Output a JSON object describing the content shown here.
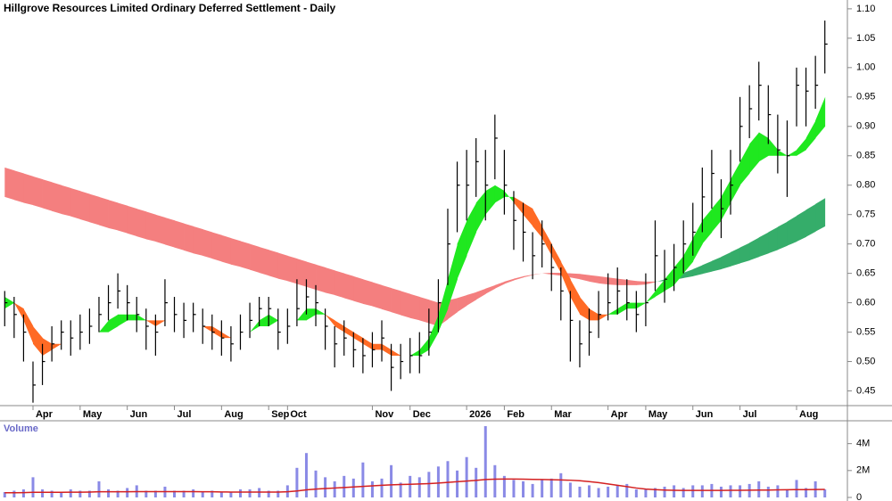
{
  "chart_data": [
    {
      "type": "ohlc",
      "title": "Hillgrove Resources Limited Ordinary Deferred Settlement - Daily",
      "categories": [
        null,
        null,
        null,
        "Apr",
        null,
        null,
        null,
        null,
        "May",
        null,
        null,
        null,
        null,
        "Jun",
        null,
        null,
        null,
        null,
        "Jul",
        null,
        null,
        null,
        null,
        "Aug",
        null,
        null,
        null,
        null,
        "Sep",
        null,
        "Oct",
        null,
        null,
        null,
        null,
        null,
        null,
        null,
        null,
        "Nov",
        null,
        null,
        null,
        "Dec",
        null,
        null,
        null,
        null,
        null,
        "2026",
        null,
        null,
        null,
        "Feb",
        null,
        null,
        null,
        null,
        "Mar",
        null,
        null,
        null,
        null,
        null,
        "Apr",
        null,
        null,
        null,
        "May",
        null,
        null,
        null,
        null,
        "Jun",
        null,
        null,
        null,
        null,
        "Jul",
        null,
        null,
        null,
        null,
        null,
        "Aug",
        null,
        null,
        null
      ],
      "close": [
        0.6,
        0.58,
        0.55,
        0.46,
        0.5,
        0.53,
        0.55,
        0.54,
        0.55,
        0.56,
        0.58,
        0.6,
        0.62,
        0.6,
        0.58,
        0.56,
        0.55,
        0.6,
        0.58,
        0.57,
        0.58,
        0.56,
        0.55,
        0.54,
        0.53,
        0.55,
        0.57,
        0.59,
        0.59,
        0.55,
        0.56,
        0.59,
        0.61,
        0.6,
        0.56,
        0.53,
        0.54,
        0.52,
        0.51,
        0.52,
        0.54,
        0.49,
        0.5,
        0.51,
        0.51,
        0.55,
        0.6,
        0.7,
        0.8,
        0.8,
        0.84,
        0.8,
        0.88,
        0.8,
        0.74,
        0.72,
        0.68,
        0.7,
        0.66,
        0.62,
        0.57,
        0.53,
        0.55,
        0.58,
        0.6,
        0.62,
        0.6,
        0.58,
        0.6,
        0.68,
        0.64,
        0.66,
        0.7,
        0.72,
        0.78,
        0.82,
        0.76,
        0.8,
        0.9,
        0.93,
        0.97,
        0.92,
        0.86,
        0.85,
        0.97,
        0.96,
        0.97,
        1.04
      ],
      "high": [
        0.62,
        0.61,
        0.58,
        0.5,
        0.53,
        0.56,
        0.57,
        0.57,
        0.58,
        0.59,
        0.61,
        0.63,
        0.65,
        0.63,
        0.61,
        0.59,
        0.58,
        0.64,
        0.61,
        0.6,
        0.6,
        0.59,
        0.58,
        0.57,
        0.56,
        0.58,
        0.6,
        0.61,
        0.61,
        0.59,
        0.59,
        0.64,
        0.64,
        0.63,
        0.59,
        0.56,
        0.57,
        0.55,
        0.54,
        0.55,
        0.57,
        0.53,
        0.53,
        0.54,
        0.55,
        0.59,
        0.64,
        0.76,
        0.84,
        0.86,
        0.88,
        0.86,
        0.92,
        0.86,
        0.79,
        0.77,
        0.72,
        0.74,
        0.7,
        0.66,
        0.62,
        0.57,
        0.59,
        0.62,
        0.65,
        0.66,
        0.64,
        0.62,
        0.65,
        0.74,
        0.69,
        0.7,
        0.74,
        0.77,
        0.83,
        0.86,
        0.81,
        0.86,
        0.95,
        0.97,
        1.01,
        0.97,
        0.92,
        0.91,
        1.0,
        1.0,
        1.02,
        1.08
      ],
      "low": [
        0.56,
        0.54,
        0.5,
        0.43,
        0.46,
        0.5,
        0.52,
        0.51,
        0.52,
        0.53,
        0.55,
        0.57,
        0.59,
        0.57,
        0.55,
        0.52,
        0.51,
        0.56,
        0.55,
        0.54,
        0.55,
        0.53,
        0.52,
        0.51,
        0.5,
        0.52,
        0.54,
        0.56,
        0.56,
        0.52,
        0.53,
        0.56,
        0.58,
        0.56,
        0.52,
        0.49,
        0.51,
        0.49,
        0.48,
        0.49,
        0.5,
        0.45,
        0.47,
        0.48,
        0.48,
        0.51,
        0.55,
        0.63,
        0.72,
        0.74,
        0.78,
        0.74,
        0.81,
        0.75,
        0.69,
        0.67,
        0.64,
        0.66,
        0.62,
        0.57,
        0.5,
        0.49,
        0.51,
        0.54,
        0.57,
        0.58,
        0.57,
        0.55,
        0.56,
        0.62,
        0.6,
        0.62,
        0.65,
        0.68,
        0.72,
        0.76,
        0.71,
        0.75,
        0.84,
        0.88,
        0.91,
        0.87,
        0.82,
        0.78,
        0.9,
        0.9,
        0.93,
        0.99
      ],
      "bar_color": "#000000",
      "bands": [
        {
          "color_up": "#35ad6a",
          "color_down": "#f47f7f",
          "fast": [
            0.78,
            0.775,
            0.77,
            0.766,
            0.761,
            0.756,
            0.751,
            0.747,
            0.742,
            0.737,
            0.732,
            0.727,
            0.723,
            0.718,
            0.713,
            0.708,
            0.704,
            0.699,
            0.694,
            0.689,
            0.684,
            0.68,
            0.675,
            0.67,
            0.665,
            0.661,
            0.656,
            0.651,
            0.646,
            0.641,
            0.637,
            0.632,
            0.627,
            0.622,
            0.617,
            0.613,
            0.608,
            0.603,
            0.598,
            0.594,
            0.589,
            0.584,
            0.579,
            0.574,
            0.57,
            0.565,
            0.56,
            0.572,
            0.584,
            0.595,
            0.605,
            0.615,
            0.624,
            0.632,
            0.638,
            0.643,
            0.647,
            0.65,
            0.648,
            0.646,
            0.643,
            0.64,
            0.636,
            0.633,
            0.631,
            0.63,
            0.63,
            0.63,
            0.631,
            0.635,
            0.64,
            0.645,
            0.651,
            0.657,
            0.664,
            0.671,
            0.678,
            0.686,
            0.694,
            0.702,
            0.711,
            0.72,
            0.729,
            0.738,
            0.748,
            0.758,
            0.768,
            0.778
          ],
          "slow": [
            0.83,
            0.825,
            0.82,
            0.815,
            0.81,
            0.805,
            0.8,
            0.795,
            0.79,
            0.785,
            0.78,
            0.775,
            0.77,
            0.765,
            0.76,
            0.755,
            0.75,
            0.745,
            0.74,
            0.735,
            0.73,
            0.725,
            0.72,
            0.715,
            0.71,
            0.705,
            0.7,
            0.695,
            0.69,
            0.685,
            0.68,
            0.675,
            0.67,
            0.665,
            0.66,
            0.655,
            0.65,
            0.645,
            0.64,
            0.635,
            0.63,
            0.625,
            0.62,
            0.615,
            0.61,
            0.605,
            0.6,
            0.604,
            0.608,
            0.613,
            0.618,
            0.624,
            0.63,
            0.636,
            0.641,
            0.645,
            0.648,
            0.65,
            0.651,
            0.651,
            0.65,
            0.649,
            0.647,
            0.645,
            0.643,
            0.641,
            0.639,
            0.637,
            0.636,
            0.636,
            0.637,
            0.639,
            0.642,
            0.645,
            0.649,
            0.653,
            0.657,
            0.662,
            0.667,
            0.672,
            0.678,
            0.684,
            0.69,
            0.697,
            0.704,
            0.712,
            0.721,
            0.73
          ]
        },
        {
          "color_up": "#1fe81f",
          "color_down": "#ff6a24",
          "fast": [
            0.61,
            0.6,
            0.57,
            0.53,
            0.51,
            0.52,
            0.53,
            0.53,
            0.54,
            0.54,
            0.55,
            0.57,
            0.58,
            0.58,
            0.58,
            0.57,
            0.56,
            0.57,
            0.57,
            0.57,
            0.57,
            0.56,
            0.55,
            0.54,
            0.54,
            0.54,
            0.55,
            0.57,
            0.58,
            0.57,
            0.57,
            0.57,
            0.59,
            0.59,
            0.58,
            0.56,
            0.55,
            0.54,
            0.53,
            0.52,
            0.52,
            0.51,
            0.51,
            0.51,
            0.52,
            0.54,
            0.58,
            0.64,
            0.7,
            0.74,
            0.77,
            0.79,
            0.8,
            0.79,
            0.77,
            0.75,
            0.73,
            0.71,
            0.68,
            0.65,
            0.61,
            0.58,
            0.57,
            0.57,
            0.58,
            0.59,
            0.6,
            0.6,
            0.6,
            0.62,
            0.64,
            0.66,
            0.68,
            0.71,
            0.74,
            0.76,
            0.78,
            0.81,
            0.84,
            0.87,
            0.89,
            0.88,
            0.86,
            0.85,
            0.86,
            0.88,
            0.91,
            0.95
          ],
          "slow": [
            0.59,
            0.6,
            0.59,
            0.56,
            0.54,
            0.53,
            0.53,
            0.53,
            0.54,
            0.54,
            0.55,
            0.55,
            0.56,
            0.57,
            0.57,
            0.57,
            0.57,
            0.57,
            0.57,
            0.57,
            0.57,
            0.56,
            0.56,
            0.55,
            0.54,
            0.54,
            0.55,
            0.56,
            0.56,
            0.57,
            0.57,
            0.57,
            0.57,
            0.58,
            0.58,
            0.57,
            0.56,
            0.55,
            0.54,
            0.53,
            0.53,
            0.52,
            0.51,
            0.51,
            0.51,
            0.52,
            0.55,
            0.59,
            0.64,
            0.68,
            0.72,
            0.75,
            0.77,
            0.78,
            0.78,
            0.77,
            0.76,
            0.73,
            0.7,
            0.67,
            0.64,
            0.61,
            0.59,
            0.58,
            0.58,
            0.58,
            0.59,
            0.59,
            0.6,
            0.61,
            0.62,
            0.63,
            0.65,
            0.67,
            0.7,
            0.72,
            0.74,
            0.77,
            0.8,
            0.82,
            0.84,
            0.85,
            0.85,
            0.85,
            0.85,
            0.86,
            0.88,
            0.9
          ]
        }
      ],
      "ylim": [
        0.425,
        1.115
      ],
      "yticks": [
        0.45,
        {
          "value": 0.5,
          "label": "0.50"
        },
        0.55,
        {
          "value": 0.6,
          "label": "0.60"
        },
        0.65,
        {
          "value": 0.7,
          "label": "0.70"
        },
        0.75,
        {
          "value": 0.8,
          "label": "0.80"
        },
        0.85,
        {
          "value": 0.9,
          "label": "0.90"
        },
        0.95,
        {
          "value": 1,
          "label": "1.00"
        },
        1.05,
        {
          "value": 1.1,
          "label": "1.10"
        }
      ]
    },
    {
      "type": "bar",
      "title": "Volume",
      "color": "#8a8ae6",
      "values": [
        0.4,
        0.5,
        0.6,
        1.5,
        0.6,
        0.5,
        0.4,
        0.6,
        0.5,
        0.5,
        1.2,
        0.6,
        0.5,
        0.7,
        0.9,
        0.5,
        0.5,
        0.8,
        0.5,
        0.5,
        0.6,
        0.4,
        0.5,
        0.4,
        0.4,
        0.6,
        0.6,
        0.7,
        0.5,
        0.5,
        0.9,
        2.2,
        3.3,
        2.0,
        1.5,
        1.2,
        1.6,
        1.4,
        2.6,
        1.2,
        1.4,
        2.4,
        1.1,
        1.6,
        1.5,
        1.9,
        2.3,
        2.7,
        2.0,
        3.0,
        2.2,
        5.3,
        2.4,
        1.6,
        1.3,
        1.2,
        1.0,
        1.3,
        1.4,
        1.8,
        1.1,
        0.8,
        0.9,
        0.7,
        0.8,
        0.9,
        1.0,
        0.6,
        0.6,
        0.7,
        0.8,
        0.9,
        0.7,
        0.9,
        0.9,
        1.0,
        0.8,
        0.9,
        0.9,
        1.0,
        1.2,
        0.8,
        0.9,
        0.6,
        1.3,
        0.7,
        1.2,
        0.6
      ],
      "average": {
        "color": "#d42020",
        "values": [
          0.35,
          0.35,
          0.36,
          0.38,
          0.38,
          0.38,
          0.38,
          0.39,
          0.39,
          0.4,
          0.42,
          0.42,
          0.42,
          0.42,
          0.43,
          0.43,
          0.43,
          0.43,
          0.43,
          0.43,
          0.43,
          0.42,
          0.42,
          0.41,
          0.4,
          0.4,
          0.4,
          0.4,
          0.4,
          0.4,
          0.42,
          0.48,
          0.56,
          0.62,
          0.66,
          0.7,
          0.74,
          0.78,
          0.82,
          0.86,
          0.9,
          0.94,
          0.96,
          0.98,
          1.0,
          1.03,
          1.07,
          1.12,
          1.17,
          1.22,
          1.27,
          1.33,
          1.36,
          1.37,
          1.37,
          1.36,
          1.34,
          1.33,
          1.32,
          1.3,
          1.28,
          1.24,
          1.18,
          1.1,
          1.0,
          0.9,
          0.8,
          0.7,
          0.62,
          0.58,
          0.55,
          0.53,
          0.52,
          0.52,
          0.52,
          0.52,
          0.52,
          0.53,
          0.53,
          0.54,
          0.55,
          0.55,
          0.56,
          0.57,
          0.58,
          0.58,
          0.59,
          0.6
        ]
      },
      "ylim": [
        0,
        5.7
      ],
      "yticks": [
        0,
        {
          "value": 2,
          "label": "2M"
        },
        {
          "value": 4,
          "label": "4M"
        }
      ]
    }
  ]
}
